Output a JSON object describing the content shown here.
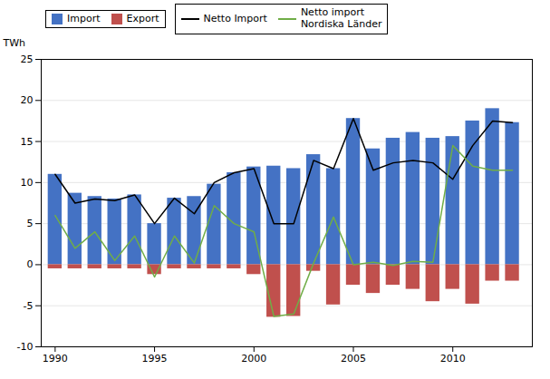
{
  "chart_data": {
    "type": "bar",
    "ylabel": "TWh",
    "x": [
      1990,
      1991,
      1992,
      1993,
      1994,
      1995,
      1996,
      1997,
      1998,
      1999,
      2000,
      2001,
      2002,
      2003,
      2004,
      2005,
      2006,
      2007,
      2008,
      2009,
      2010,
      2011,
      2012,
      2013
    ],
    "series": [
      {
        "name": "Import",
        "type": "bar",
        "color": "#4472C4",
        "values": [
          11.0,
          8.7,
          8.3,
          8.0,
          8.5,
          5.0,
          8.1,
          8.3,
          9.8,
          11.2,
          11.9,
          12.0,
          11.7,
          13.4,
          11.7,
          17.8,
          14.1,
          15.4,
          16.1,
          15.4,
          15.6,
          17.5,
          19.0,
          17.3
        ]
      },
      {
        "name": "Export",
        "type": "bar",
        "color": "#C0504D",
        "values": [
          -0.5,
          -0.5,
          -0.5,
          -0.5,
          -0.5,
          -1.2,
          -0.5,
          -0.5,
          -0.5,
          -0.5,
          -1.2,
          -6.4,
          -6.3,
          -0.8,
          -4.9,
          -2.5,
          -3.5,
          -2.5,
          -3.0,
          -4.5,
          -3.0,
          -4.8,
          -2.0,
          -2.0
        ]
      },
      {
        "name": "Netto Import",
        "type": "line",
        "color": "#000000",
        "values": [
          11.0,
          7.5,
          8.0,
          7.8,
          8.5,
          5.0,
          8.1,
          6.2,
          10.0,
          11.2,
          11.7,
          5.0,
          5.0,
          12.7,
          11.7,
          17.8,
          11.5,
          12.4,
          12.7,
          12.4,
          10.4,
          14.5,
          17.5,
          17.3
        ]
      },
      {
        "name": "Netto import\nNordiska Länder",
        "type": "line",
        "color": "#70AD47",
        "values": [
          6.0,
          2.0,
          4.0,
          0.5,
          3.5,
          -1.5,
          3.5,
          0.2,
          7.2,
          5.0,
          4.0,
          -6.3,
          -6.0,
          0.2,
          5.8,
          0.0,
          0.3,
          -0.1,
          0.4,
          0.3,
          14.5,
          12.0,
          11.5,
          11.5
        ]
      }
    ],
    "xlim": [
      1989.3,
      2014.0
    ],
    "xticks": [
      1990,
      1995,
      2000,
      2005,
      2010
    ],
    "ylim": [
      -10,
      25
    ],
    "yticks": [
      -10,
      -5,
      0,
      5,
      10,
      15,
      20,
      25
    ],
    "grid": "y",
    "legend": "upper left"
  }
}
